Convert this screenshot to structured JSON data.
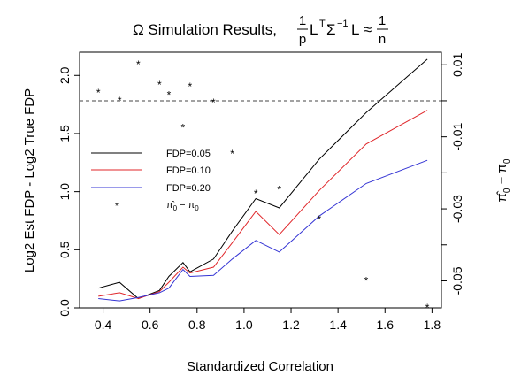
{
  "chart_data": {
    "type": "line",
    "title": {
      "prefix": "Ω Simulation Results,",
      "frac1_num": "1",
      "frac1_den": "p",
      "L": "L",
      "T": "T",
      "Sigma": "Σ",
      "minus1": "−1",
      "L2": "L",
      "approx": "≈",
      "frac2_num": "1",
      "frac2_den": "n"
    },
    "xlabel": "Standardized Correlation",
    "ylabel": "Log2 Est FDP - Log2 True FDP",
    "y2label": {
      "pi_hat": "π̂",
      "sub": "0",
      "minus": " − π",
      "sub2": "0"
    },
    "xlim": [
      0.3,
      1.84
    ],
    "ylim": [
      0,
      2.2
    ],
    "y2lim": [
      -0.0575,
      0.0135
    ],
    "x_ticks": [
      0.4,
      0.6,
      0.8,
      1.0,
      1.2,
      1.4,
      1.6,
      1.8
    ],
    "x_tick_labels": [
      "0.4",
      "0.6",
      "0.8",
      "1.0",
      "1.2",
      "1.4",
      "1.6",
      "1.8"
    ],
    "y_ticks": [
      0.0,
      0.5,
      1.0,
      1.5,
      2.0
    ],
    "y_tick_labels": [
      "0.0",
      "0.5",
      "1.0",
      "1.5",
      "2.0"
    ],
    "y2_ticks": [
      -0.05,
      -0.04,
      -0.03,
      -0.02,
      -0.01,
      0.0,
      0.01
    ],
    "y2_tick_labels": [
      "-0.05",
      "",
      "-0.03",
      "",
      "-0.01",
      "",
      "0.01"
    ],
    "hline_y2": 0.0,
    "series": [
      {
        "name": "FDP=0.05",
        "color": "#000000",
        "x": [
          0.38,
          0.47,
          0.55,
          0.64,
          0.68,
          0.74,
          0.77,
          0.87,
          0.95,
          1.05,
          1.15,
          1.32,
          1.52,
          1.78
        ],
        "y": [
          0.17,
          0.22,
          0.08,
          0.15,
          0.27,
          0.39,
          0.31,
          0.42,
          0.66,
          0.94,
          0.86,
          1.28,
          1.68,
          2.14
        ]
      },
      {
        "name": "FDP=0.10",
        "color": "#e0262a",
        "x": [
          0.38,
          0.47,
          0.55,
          0.64,
          0.68,
          0.74,
          0.77,
          0.87,
          0.95,
          1.05,
          1.15,
          1.32,
          1.52,
          1.78
        ],
        "y": [
          0.1,
          0.13,
          0.08,
          0.14,
          0.22,
          0.35,
          0.3,
          0.35,
          0.56,
          0.83,
          0.63,
          1.01,
          1.41,
          1.7
        ]
      },
      {
        "name": "FDP=0.20",
        "color": "#3434d4",
        "x": [
          0.38,
          0.47,
          0.55,
          0.64,
          0.68,
          0.74,
          0.77,
          0.87,
          0.95,
          1.05,
          1.15,
          1.32,
          1.52,
          1.78
        ],
        "y": [
          0.08,
          0.06,
          0.09,
          0.13,
          0.17,
          0.33,
          0.27,
          0.28,
          0.42,
          0.58,
          0.48,
          0.79,
          1.07,
          1.27
        ]
      }
    ],
    "points": {
      "x": [
        0.38,
        0.47,
        0.55,
        0.64,
        0.68,
        0.74,
        0.77,
        0.87,
        0.95,
        1.05,
        1.15,
        1.32,
        1.52,
        1.78
      ],
      "y2": [
        0.0024,
        0.0002,
        0.0103,
        0.0047,
        0.0018,
        -0.0073,
        0.0042,
        -0.0003,
        -0.0145,
        -0.0256,
        -0.0244,
        -0.0327,
        -0.0498,
        -0.0573
      ],
      "marker": "*"
    },
    "legend": {
      "position": "left-center",
      "entries": [
        {
          "label": "FDP=0.05",
          "color": "#000000",
          "kind": "line"
        },
        {
          "label": "FDP=0.10",
          "color": "#e0262a",
          "kind": "line"
        },
        {
          "label": "FDP=0.20",
          "color": "#3434d4",
          "kind": "line"
        },
        {
          "label_pi": "π̂",
          "label_sub": "0",
          "label_rest": " − π",
          "label_sub2": "0",
          "kind": "point",
          "marker": "*"
        }
      ]
    },
    "grid": false
  }
}
